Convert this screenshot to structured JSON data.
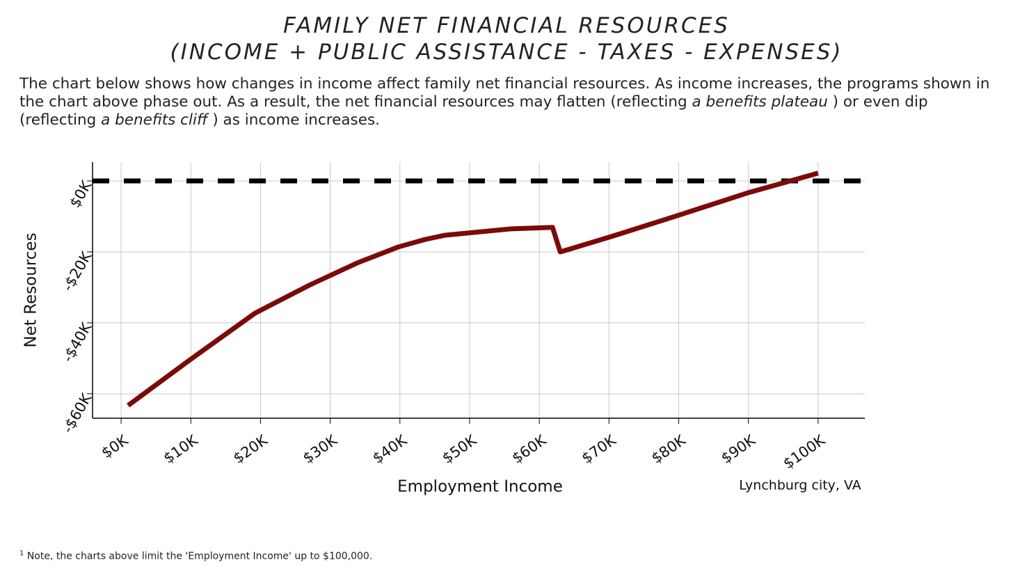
{
  "header": {
    "title_lines": [
      "FAMILY NET FINANCIAL RESOURCES",
      "(INCOME + PUBLIC ASSISTANCE - TAXES - EXPENSES)"
    ]
  },
  "description": [
    "The chart below shows how changes in income affect family net financial resources. As income increases, the programs shown in the chart above phase out. As a result, the net financial resources may flatten (reflecting ",
    "a benefits plateau",
    " ) or even dip (reflecting ",
    "a benefits cliff",
    " ) as income increases."
  ],
  "chart_data": {
    "type": "line",
    "x_label": "Employment Income",
    "y_label": "Net Resources",
    "annotation": "Lynchburg city, VA",
    "x": [
      1000,
      9900,
      19200,
      27000,
      33900,
      39800,
      43600,
      46500,
      56000,
      61900,
      63000,
      64400,
      70300,
      80100,
      90000,
      100000
    ],
    "series": [
      {
        "name": "Net Resources",
        "color": "#7b0a0a",
        "values": [
          -63300,
          -50400,
          -37300,
          -29400,
          -23100,
          -18600,
          -16500,
          -15300,
          -13500,
          -13100,
          -20000,
          -19200,
          -15700,
          -9600,
          -3300,
          2200
        ]
      }
    ],
    "xlim": [
      -4100,
      106700
    ],
    "ylim": [
      -66900,
      5300
    ],
    "xticks": [
      {
        "value": 0,
        "label": "$0K"
      },
      {
        "value": 10000,
        "label": "$10K"
      },
      {
        "value": 20000,
        "label": "$20K"
      },
      {
        "value": 30000,
        "label": "$30K"
      },
      {
        "value": 40000,
        "label": "$40K"
      },
      {
        "value": 50000,
        "label": "$50K"
      },
      {
        "value": 60000,
        "label": "$60K"
      },
      {
        "value": 70000,
        "label": "$70K"
      },
      {
        "value": 80000,
        "label": "$80K"
      },
      {
        "value": 90000,
        "label": "$90K"
      },
      {
        "value": 100000,
        "label": "$100K"
      }
    ],
    "yticks": [
      {
        "value": -60000,
        "label": "-$60K"
      },
      {
        "value": -40000,
        "label": "-$40K"
      },
      {
        "value": -20000,
        "label": "-$20K"
      },
      {
        "value": 0,
        "label": "$0K"
      }
    ],
    "grid": true
  },
  "footnote": {
    "marker": "1",
    "text": "Note, the charts above limit the 'Employment Income' up to $100,000."
  }
}
